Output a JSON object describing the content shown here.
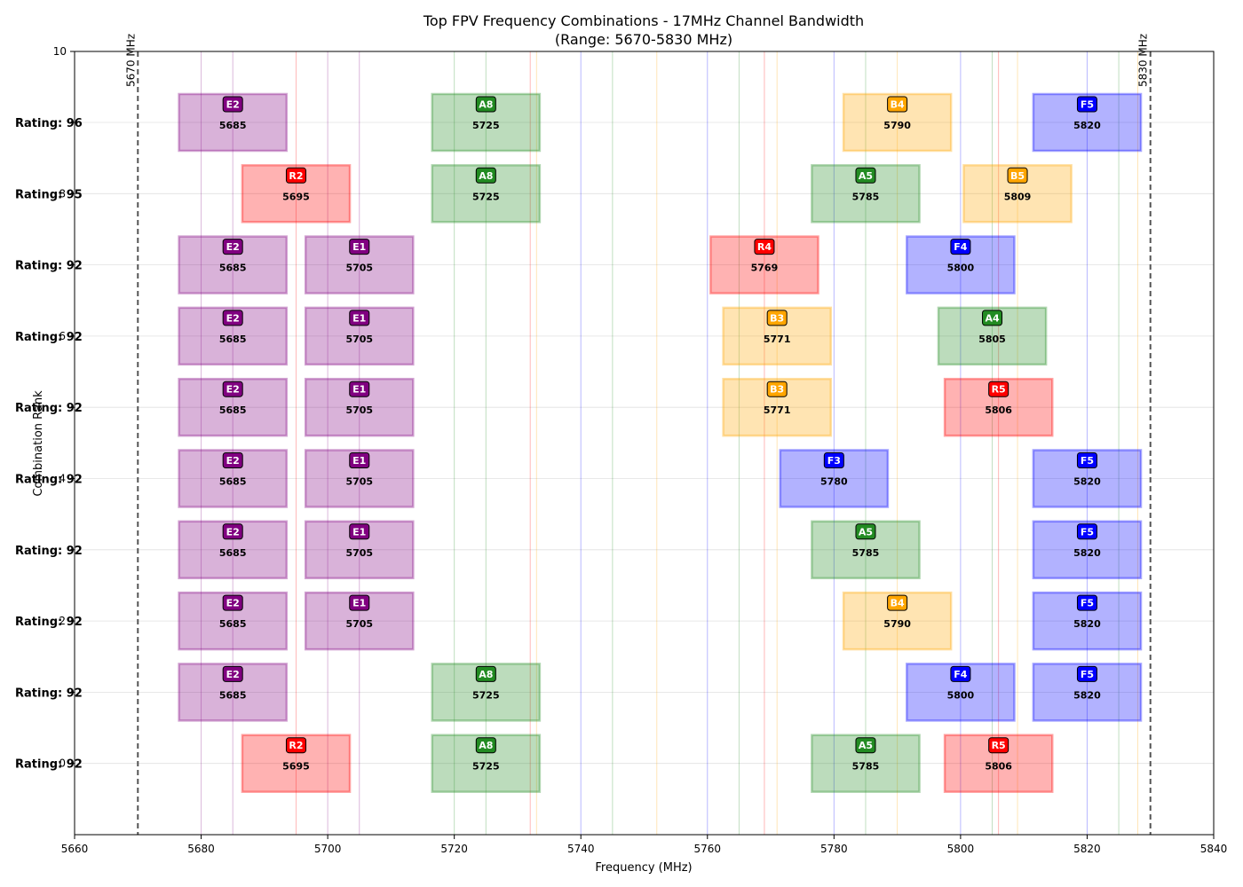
{
  "chart_data": {
    "type": "bar",
    "title": "Top FPV Frequency Combinations - 17MHz Channel Bandwidth",
    "subtitle": "(Range: 5670-5830 MHz)",
    "xlabel": "Frequency (MHz)",
    "ylabel": "Combination Rank",
    "xlim": [
      5660,
      5840
    ],
    "xticks": [
      "5660",
      "5680",
      "5700",
      "5720",
      "5740",
      "5760",
      "5780",
      "5800",
      "5820",
      "5840"
    ],
    "ytick_top": "10",
    "ghost_ticks": [
      "8",
      "6",
      "4",
      "2",
      "0"
    ],
    "channel_bandwidth_mhz": 17,
    "boundaries": [
      {
        "freq": 5670,
        "label": "5670 MHz"
      },
      {
        "freq": 5830,
        "label": "5830 MHz"
      }
    ],
    "band_colors": {
      "A": "#228B22",
      "B": "#FFA500",
      "E": "#800080",
      "F": "#0000FF",
      "R": "#FF0000"
    },
    "reference_lines": [
      {
        "freq": 5685,
        "band": "E"
      },
      {
        "freq": 5705,
        "band": "E"
      },
      {
        "freq": 5695,
        "band": "R"
      },
      {
        "freq": 5725,
        "band": "A"
      },
      {
        "freq": 5732,
        "band": "R"
      },
      {
        "freq": 5733,
        "band": "B"
      },
      {
        "freq": 5740,
        "band": "F"
      },
      {
        "freq": 5745,
        "band": "A"
      },
      {
        "freq": 5752,
        "band": "B"
      },
      {
        "freq": 5760,
        "band": "F"
      },
      {
        "freq": 5765,
        "band": "A"
      },
      {
        "freq": 5769,
        "band": "R"
      },
      {
        "freq": 5771,
        "band": "B"
      },
      {
        "freq": 5780,
        "band": "F"
      },
      {
        "freq": 5785,
        "band": "A"
      },
      {
        "freq": 5790,
        "band": "B"
      },
      {
        "freq": 5800,
        "band": "F"
      },
      {
        "freq": 5805,
        "band": "A"
      },
      {
        "freq": 5806,
        "band": "R"
      },
      {
        "freq": 5809,
        "band": "B"
      },
      {
        "freq": 5820,
        "band": "F"
      },
      {
        "freq": 5825,
        "band": "A"
      },
      {
        "freq": 5828,
        "band": "B"
      },
      {
        "freq": 5680,
        "band": "E"
      },
      {
        "freq": 5700,
        "band": "E"
      },
      {
        "freq": 5720,
        "band": "A"
      }
    ],
    "combinations": [
      {
        "label": "Rating: 96",
        "channels": [
          {
            "code": "E2",
            "freq": 5685
          },
          {
            "code": "A8",
            "freq": 5725
          },
          {
            "code": "B4",
            "freq": 5790
          },
          {
            "code": "F5",
            "freq": 5820
          }
        ]
      },
      {
        "label": "Rating: 95",
        "channels": [
          {
            "code": "R2",
            "freq": 5695
          },
          {
            "code": "A8",
            "freq": 5725
          },
          {
            "code": "A5",
            "freq": 5785
          },
          {
            "code": "B5",
            "freq": 5809
          }
        ]
      },
      {
        "label": "Rating: 92",
        "channels": [
          {
            "code": "E2",
            "freq": 5685
          },
          {
            "code": "E1",
            "freq": 5705
          },
          {
            "code": "R4",
            "freq": 5769
          },
          {
            "code": "F4",
            "freq": 5800
          }
        ]
      },
      {
        "label": "Rating: 92",
        "channels": [
          {
            "code": "E2",
            "freq": 5685
          },
          {
            "code": "E1",
            "freq": 5705
          },
          {
            "code": "B3",
            "freq": 5771
          },
          {
            "code": "A4",
            "freq": 5805
          }
        ]
      },
      {
        "label": "Rating: 92",
        "channels": [
          {
            "code": "E2",
            "freq": 5685
          },
          {
            "code": "E1",
            "freq": 5705
          },
          {
            "code": "B3",
            "freq": 5771
          },
          {
            "code": "R5",
            "freq": 5806
          }
        ]
      },
      {
        "label": "Rating: 92",
        "channels": [
          {
            "code": "E2",
            "freq": 5685
          },
          {
            "code": "E1",
            "freq": 5705
          },
          {
            "code": "F3",
            "freq": 5780
          },
          {
            "code": "F5",
            "freq": 5820
          }
        ]
      },
      {
        "label": "Rating: 92",
        "channels": [
          {
            "code": "E2",
            "freq": 5685
          },
          {
            "code": "E1",
            "freq": 5705
          },
          {
            "code": "A5",
            "freq": 5785
          },
          {
            "code": "F5",
            "freq": 5820
          }
        ]
      },
      {
        "label": "Rating: 92",
        "channels": [
          {
            "code": "E2",
            "freq": 5685
          },
          {
            "code": "E1",
            "freq": 5705
          },
          {
            "code": "B4",
            "freq": 5790
          },
          {
            "code": "F5",
            "freq": 5820
          }
        ]
      },
      {
        "label": "Rating: 92",
        "channels": [
          {
            "code": "E2",
            "freq": 5685
          },
          {
            "code": "A8",
            "freq": 5725
          },
          {
            "code": "F4",
            "freq": 5800
          },
          {
            "code": "F5",
            "freq": 5820
          }
        ]
      },
      {
        "label": "Rating: 92",
        "channels": [
          {
            "code": "R2",
            "freq": 5695
          },
          {
            "code": "A8",
            "freq": 5725
          },
          {
            "code": "A5",
            "freq": 5785
          },
          {
            "code": "R5",
            "freq": 5806
          }
        ]
      }
    ]
  }
}
